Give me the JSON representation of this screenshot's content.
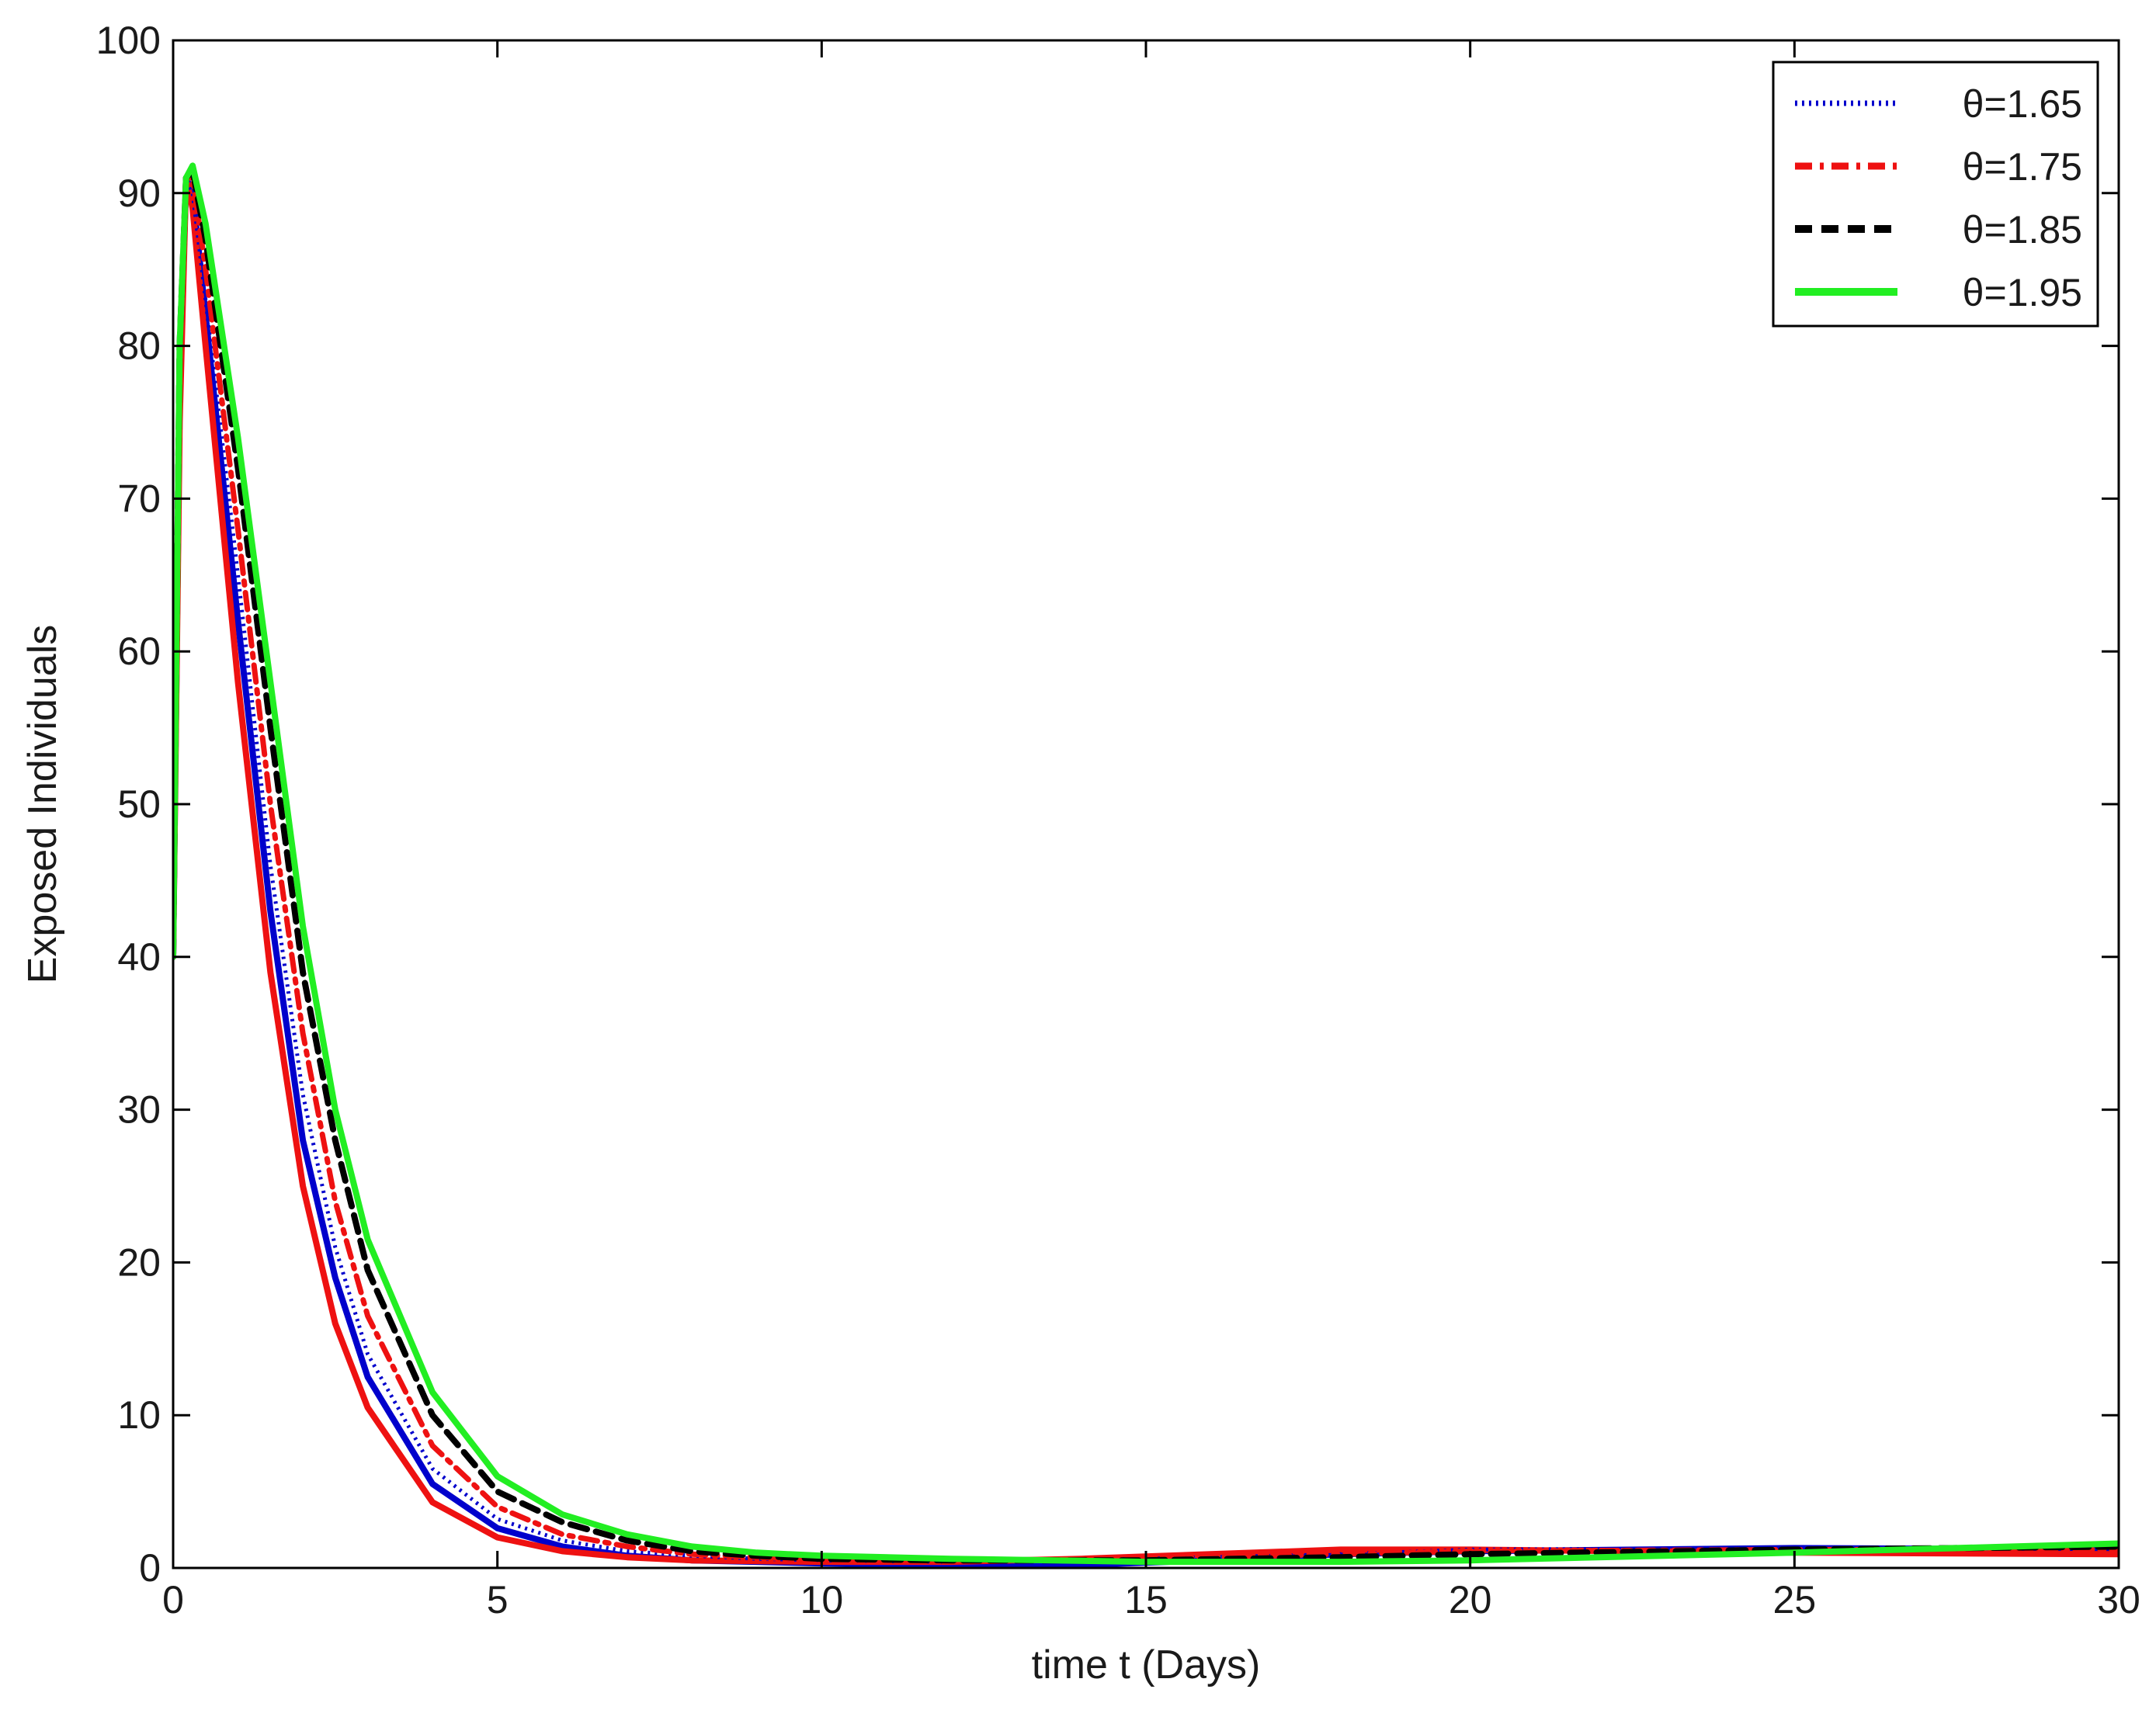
{
  "chart_data": {
    "type": "line",
    "title": "",
    "xlabel": "time t (Days)",
    "ylabel": "Exposed Individuals",
    "xlim": [
      0,
      30
    ],
    "ylim": [
      0,
      100
    ],
    "xticks": [
      0,
      5,
      10,
      15,
      20,
      25,
      30
    ],
    "yticks": [
      0,
      10,
      20,
      30,
      40,
      50,
      60,
      70,
      80,
      90,
      100
    ],
    "grid": false,
    "legend_position": "top-right",
    "series": [
      {
        "name": "θ=1.65",
        "color": "#0000cc",
        "style": "dotted",
        "legend": true,
        "x": [
          0,
          0.1,
          0.2,
          0.3,
          0.5,
          1.0,
          1.5,
          2.0,
          2.5,
          3.0,
          4.0,
          5.0,
          6.0,
          7.0,
          8.0,
          9.0,
          10.0,
          12.0,
          15.0,
          18.0,
          20.0,
          25.0,
          30.0
        ],
        "y": [
          40,
          78,
          91,
          90,
          83,
          65,
          46,
          31,
          21,
          14,
          6.5,
          3.2,
          1.8,
          1.1,
          0.8,
          0.6,
          0.5,
          0.4,
          0.6,
          0.9,
          1.2,
          1.3,
          1.3
        ]
      },
      {
        "name": "θ=1.75",
        "color": "#ee1111",
        "style": "dashdot",
        "legend": true,
        "x": [
          0,
          0.1,
          0.2,
          0.3,
          0.5,
          1.0,
          1.5,
          2.0,
          2.5,
          3.0,
          4.0,
          5.0,
          6.0,
          7.0,
          8.0,
          9.0,
          10.0,
          12.0,
          15.0,
          18.0,
          20.0,
          25.0,
          30.0
        ],
        "y": [
          40,
          79,
          91,
          91,
          85,
          68,
          50,
          35,
          24,
          16.5,
          8,
          4,
          2.2,
          1.4,
          0.9,
          0.7,
          0.5,
          0.4,
          0.6,
          0.9,
          1.1,
          1.2,
          1.2
        ]
      },
      {
        "name": "θ=1.85",
        "color": "#000000",
        "style": "dashed",
        "legend": true,
        "x": [
          0,
          0.1,
          0.2,
          0.3,
          0.5,
          1.0,
          1.5,
          2.0,
          2.5,
          3.0,
          4.0,
          5.0,
          6.0,
          7.0,
          8.0,
          9.0,
          10.0,
          12.0,
          15.0,
          18.0,
          20.0,
          25.0,
          30.0
        ],
        "y": [
          40,
          80,
          91,
          91.5,
          87,
          72,
          55,
          39,
          28,
          19.5,
          10,
          5,
          3,
          1.8,
          1.1,
          0.8,
          0.6,
          0.5,
          0.5,
          0.7,
          0.9,
          1.2,
          1.4
        ]
      },
      {
        "name": "θ=1.95",
        "color": "#22ee22",
        "style": "solid",
        "legend": true,
        "x": [
          0,
          0.1,
          0.2,
          0.3,
          0.5,
          1.0,
          1.5,
          2.0,
          2.5,
          3.0,
          4.0,
          5.0,
          6.0,
          7.0,
          8.0,
          9.0,
          10.0,
          12.0,
          15.0,
          18.0,
          20.0,
          25.0,
          30.0
        ],
        "y": [
          40,
          80,
          91,
          91.8,
          88,
          74,
          58,
          42,
          30,
          21.5,
          11.5,
          6,
          3.5,
          2.2,
          1.4,
          1.0,
          0.8,
          0.6,
          0.4,
          0.4,
          0.5,
          1.0,
          1.6
        ]
      },
      {
        "name": "",
        "color": "#0000cc",
        "style": "solid",
        "legend": false,
        "x": [
          0,
          0.1,
          0.2,
          0.3,
          0.5,
          1.0,
          1.5,
          2.0,
          2.5,
          3.0,
          4.0,
          5.0,
          6.0,
          7.0,
          8.0,
          10.0,
          12.0,
          14.0,
          16.0,
          18.0,
          20.0,
          25.0,
          30.0
        ],
        "y": [
          40,
          77,
          91,
          90,
          82,
          62,
          43,
          28,
          19,
          12.5,
          5.5,
          2.6,
          1.4,
          0.8,
          0.5,
          0.3,
          0.2,
          0.2,
          0.5,
          0.9,
          1.1,
          1.3,
          1.2
        ]
      },
      {
        "name": "",
        "color": "#ee1111",
        "style": "solid",
        "legend": false,
        "x": [
          0,
          0.1,
          0.2,
          0.3,
          0.5,
          1.0,
          1.5,
          2.0,
          2.5,
          3.0,
          4.0,
          5.0,
          6.0,
          7.0,
          8.0,
          10.0,
          12.0,
          14.0,
          16.0,
          18.0,
          20.0,
          25.0,
          30.0
        ],
        "y": [
          40,
          75,
          91,
          89,
          80,
          58,
          39,
          25,
          16,
          10.5,
          4.3,
          2,
          1.1,
          0.7,
          0.5,
          0.4,
          0.4,
          0.6,
          0.9,
          1.2,
          1.2,
          1.0,
          0.9
        ]
      }
    ]
  }
}
